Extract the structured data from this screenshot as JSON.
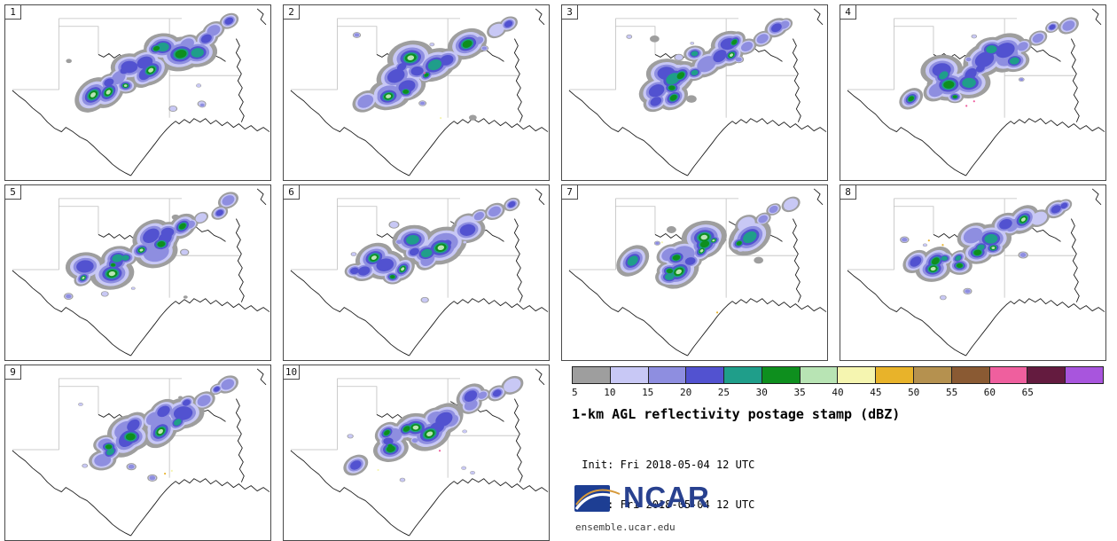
{
  "figure": {
    "title": "1-km AGL reflectivity postage stamp (dBZ)",
    "init_line": " Init: Fri 2018-05-04 12 UTC",
    "valid_line": "Valid: Fri 2018-05-04 12 UTC"
  },
  "logo": {
    "text": "NCAR",
    "site": "ensemble.ucar.edu"
  },
  "panels": [
    {
      "label": "1"
    },
    {
      "label": "2"
    },
    {
      "label": "3"
    },
    {
      "label": "4"
    },
    {
      "label": "5"
    },
    {
      "label": "6"
    },
    {
      "label": "7"
    },
    {
      "label": "8"
    },
    {
      "label": "9"
    },
    {
      "label": "10"
    }
  ],
  "colorbar": {
    "unit": "dBZ",
    "ticks": [
      "5",
      "10",
      "15",
      "20",
      "25",
      "30",
      "35",
      "40",
      "45",
      "50",
      "55",
      "60",
      "65"
    ],
    "colors": [
      "#9e9e9e",
      "#c8c8f5",
      "#8e8ee0",
      "#5252d0",
      "#1f9e8a",
      "#0e8f1e",
      "#b8e4b4",
      "#f5f5b0",
      "#e8b32a",
      "#b5914f",
      "#8a5a33",
      "#ef5f9e",
      "#641b3f",
      "#a855dd"
    ]
  }
}
